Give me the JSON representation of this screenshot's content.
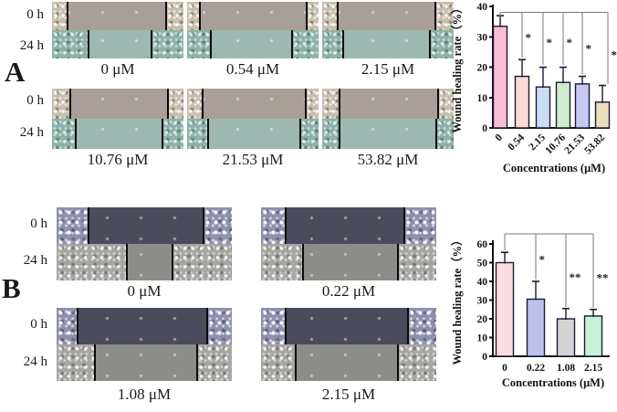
{
  "panels": [
    {
      "label": "A",
      "rows": [
        {
          "time_labels": [
            "0 h",
            "24 h"
          ],
          "images": [
            {
              "concentration": "0 μM"
            },
            {
              "concentration": "0.54 μM"
            },
            {
              "concentration": "2.15 μM"
            }
          ]
        },
        {
          "time_labels": [
            "0 h",
            "24 h"
          ],
          "images": [
            {
              "concentration": "10.76 μM"
            },
            {
              "concentration": "21.53 μM"
            },
            {
              "concentration": "53.82 μM"
            }
          ]
        }
      ]
    },
    {
      "label": "B",
      "rows": [
        {
          "time_labels": [
            "0 h",
            "24 h"
          ],
          "images": [
            {
              "concentration": "0 μM"
            },
            {
              "concentration": "0.22 μM"
            }
          ]
        },
        {
          "time_labels": [
            "0 h",
            "24 h"
          ],
          "images": [
            {
              "concentration": "1.08 μM"
            },
            {
              "concentration": "2.15 μM"
            }
          ]
        }
      ]
    }
  ],
  "chart_data": [
    {
      "type": "bar",
      "panel": "A",
      "title": "",
      "ylabel": "Wound healing rate（%）",
      "xlabel": "Concentrations (μM)",
      "categories": [
        "0",
        "0.54",
        "2.15",
        "10.76",
        "21.53",
        "53.82"
      ],
      "values": [
        33.5,
        17,
        13.5,
        15,
        14.5,
        8.5
      ],
      "errors": [
        3.5,
        5.5,
        6.5,
        5,
        2.5,
        5.5
      ],
      "significance": [
        "*",
        "*",
        "*",
        "*",
        "*"
      ],
      "ylim": [
        0,
        40
      ],
      "ytick_step": 10,
      "bar_colors": [
        "#f9bed6",
        "#fbdad6",
        "#c9ddf4",
        "#cceecf",
        "#c8c9f3",
        "#e9dfba"
      ],
      "bar_outline": "#1a1a33",
      "legend": "none",
      "grid": false
    },
    {
      "type": "bar",
      "panel": "B",
      "title": "",
      "ylabel": "Wound healing rate（%）",
      "xlabel": "Concentrations (μM)",
      "categories": [
        "0",
        "0.22",
        "1.08",
        "2.15"
      ],
      "values": [
        50,
        30.5,
        20,
        21.5
      ],
      "errors": [
        5.5,
        9.5,
        5.5,
        3.5
      ],
      "significance": [
        "*",
        "**",
        "**"
      ],
      "ylim": [
        0,
        60
      ],
      "ytick_step": 10,
      "bar_colors": [
        "#fadce1",
        "#bfc0ee",
        "#d4d4d4",
        "#c6f2da"
      ],
      "bar_outline": "#1a1a33",
      "legend": "none",
      "grid": false
    }
  ]
}
